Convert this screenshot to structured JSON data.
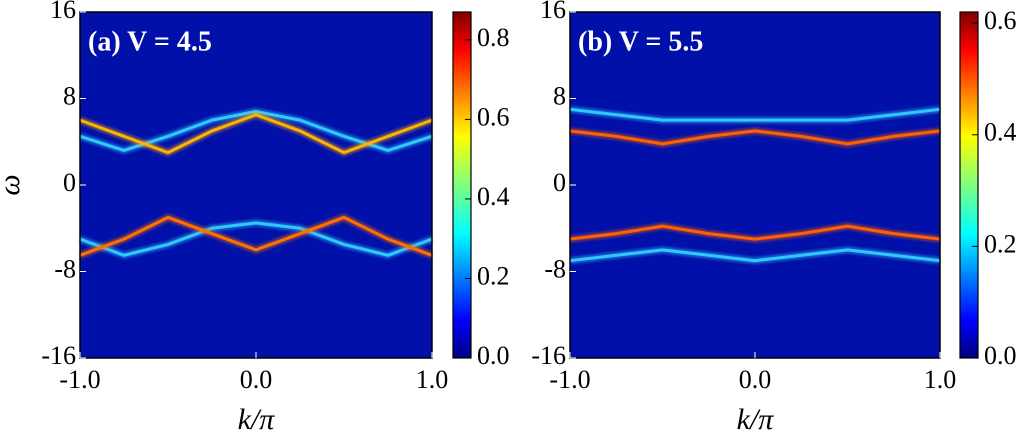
{
  "chart_data": [
    {
      "type": "heatmap",
      "title": "(a) V = 4.5",
      "xlabel": "k/π",
      "ylabel": "ω",
      "background": "#0010a8",
      "xlim": [
        -1,
        1
      ],
      "ylim": [
        -16,
        16
      ],
      "xticks": [
        {
          "value": -1,
          "label": "-1.0"
        },
        {
          "value": 0,
          "label": "0.0"
        },
        {
          "value": 1,
          "label": "1.0"
        }
      ],
      "yticks": [
        16,
        8,
        0,
        -8,
        -16
      ],
      "clim": [
        0,
        0.87
      ],
      "cticks": [
        {
          "value": 0,
          "label": "0.0"
        },
        {
          "value": 0.2,
          "label": "0.2"
        },
        {
          "value": 0.4,
          "label": "0.4"
        },
        {
          "value": 0.6,
          "label": "0.6"
        },
        {
          "value": 0.8,
          "label": "0.8"
        }
      ],
      "x": [
        -1,
        -0.75,
        -0.5,
        -0.25,
        0,
        0.25,
        0.5,
        0.75,
        1
      ],
      "series": [
        {
          "color": "#30c8ff",
          "values": [
            4.5,
            3.2,
            4.5,
            6,
            6.8,
            6,
            4.5,
            3.2,
            4.5
          ]
        },
        {
          "color": "#30c8ff",
          "values": [
            -5,
            -6.5,
            -5.5,
            -4,
            -3.5,
            -4,
            -5.5,
            -6.5,
            -5
          ]
        },
        {
          "color": "#ffb000",
          "values": [
            6,
            4.5,
            3,
            5,
            6.5,
            5,
            3,
            4.5,
            6
          ]
        },
        {
          "color": "#ff7000",
          "values": [
            -6.5,
            -5,
            -3,
            -4.5,
            -6,
            -4.5,
            -3,
            -5,
            -6.5
          ]
        }
      ]
    },
    {
      "type": "heatmap",
      "title": "(b) V = 5.5",
      "xlabel": "k/π",
      "background": "#0010a8",
      "xlim": [
        -1,
        1
      ],
      "ylim": [
        -16,
        16
      ],
      "xticks": [
        {
          "value": -1,
          "label": "-1.0"
        },
        {
          "value": 0,
          "label": "0.0"
        },
        {
          "value": 1,
          "label": "1.0"
        }
      ],
      "yticks": [
        16,
        8,
        0,
        -8,
        -16
      ],
      "clim": [
        0,
        0.62
      ],
      "cticks": [
        {
          "value": 0,
          "label": "0.0"
        },
        {
          "value": 0.2,
          "label": "0.2"
        },
        {
          "value": 0.4,
          "label": "0.4"
        },
        {
          "value": 0.6,
          "label": "0.6"
        }
      ],
      "x": [
        -1,
        -0.75,
        -0.5,
        -0.25,
        0,
        0.25,
        0.5,
        0.75,
        1
      ],
      "series": [
        {
          "color": "#30c8ff",
          "values": [
            7,
            6.5,
            6,
            6,
            6,
            6,
            6,
            6.5,
            7
          ]
        },
        {
          "color": "#30c8ff",
          "values": [
            -7,
            -6.5,
            -6,
            -6.5,
            -7,
            -6.5,
            -6,
            -6.5,
            -7
          ]
        },
        {
          "color": "#ff6000",
          "values": [
            5,
            4.5,
            3.8,
            4.5,
            5,
            4.5,
            3.8,
            4.5,
            5
          ]
        },
        {
          "color": "#ff6000",
          "values": [
            -5,
            -4.5,
            -3.8,
            -4.5,
            -5,
            -4.5,
            -3.8,
            -4.5,
            -5
          ]
        }
      ]
    }
  ]
}
